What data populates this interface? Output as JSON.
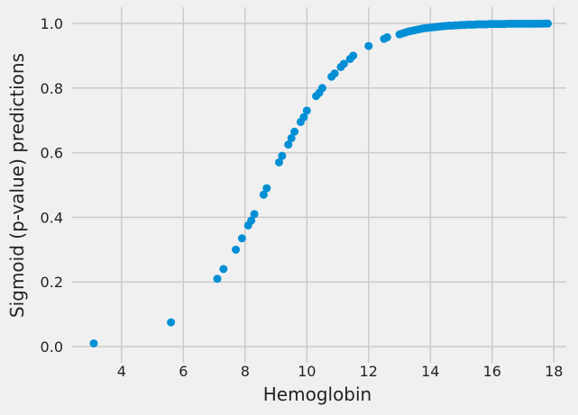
{
  "chart_data": {
    "type": "scatter",
    "title": "",
    "xlabel": "Hemoglobin",
    "ylabel": "Sigmoid (p-value) predictions",
    "xlim": [
      2.4,
      18.4
    ],
    "ylim": [
      -0.05,
      1.05
    ],
    "xticks": [
      4,
      6,
      8,
      10,
      12,
      14,
      16,
      18
    ],
    "yticks": [
      0.0,
      0.2,
      0.4,
      0.6,
      0.8,
      1.0
    ],
    "xtick_labels": [
      "4",
      "6",
      "8",
      "10",
      "12",
      "14",
      "16",
      "18"
    ],
    "ytick_labels": [
      "0.0",
      "0.2",
      "0.4",
      "0.6",
      "0.8",
      "1.0"
    ],
    "grid": true,
    "color": "#008fd5",
    "background": "#f0f0f0",
    "points": {
      "x": [
        3.1,
        5.6,
        7.1,
        7.3,
        7.7,
        7.9,
        8.1,
        8.2,
        8.3,
        8.6,
        8.7,
        9.1,
        9.2,
        9.4,
        9.5,
        9.6,
        9.8,
        9.9,
        10.0,
        10.3,
        10.4,
        10.5,
        10.8,
        10.9,
        11.1,
        11.2,
        11.4,
        11.5,
        12.0,
        12.5,
        12.6,
        13.0,
        13.1,
        13.2,
        13.3,
        13.4,
        13.5,
        13.6,
        13.7,
        13.8,
        13.9,
        14.0,
        14.1,
        14.2,
        14.3,
        14.4,
        14.5,
        14.6,
        14.7,
        14.8,
        14.9,
        15.0,
        15.1,
        15.2,
        15.3,
        15.4,
        15.5,
        15.6,
        15.7,
        15.8,
        15.9,
        16.0,
        16.1,
        16.2,
        16.3,
        16.4,
        16.5,
        16.6,
        16.7,
        16.8,
        16.9,
        17.0,
        17.1,
        17.2,
        17.3,
        17.4,
        17.5,
        17.6,
        17.7,
        17.8
      ],
      "y": [
        0.01,
        0.075,
        0.21,
        0.24,
        0.3,
        0.335,
        0.375,
        0.39,
        0.41,
        0.47,
        0.49,
        0.57,
        0.59,
        0.625,
        0.645,
        0.665,
        0.695,
        0.71,
        0.73,
        0.775,
        0.785,
        0.8,
        0.835,
        0.845,
        0.865,
        0.875,
        0.89,
        0.9,
        0.93,
        0.952,
        0.957,
        0.966,
        0.969,
        0.972,
        0.975,
        0.977,
        0.979,
        0.981,
        0.983,
        0.985,
        0.986,
        0.987,
        0.988,
        0.989,
        0.99,
        0.991,
        0.992,
        0.993,
        0.993,
        0.994,
        0.994,
        0.995,
        0.995,
        0.996,
        0.996,
        0.996,
        0.997,
        0.997,
        0.997,
        0.997,
        0.998,
        0.998,
        0.998,
        0.998,
        0.998,
        0.998,
        0.999,
        0.999,
        0.999,
        0.999,
        0.999,
        0.999,
        0.999,
        0.999,
        0.999,
        0.999,
        0.999,
        0.999,
        0.9995,
        0.9995
      ]
    }
  }
}
